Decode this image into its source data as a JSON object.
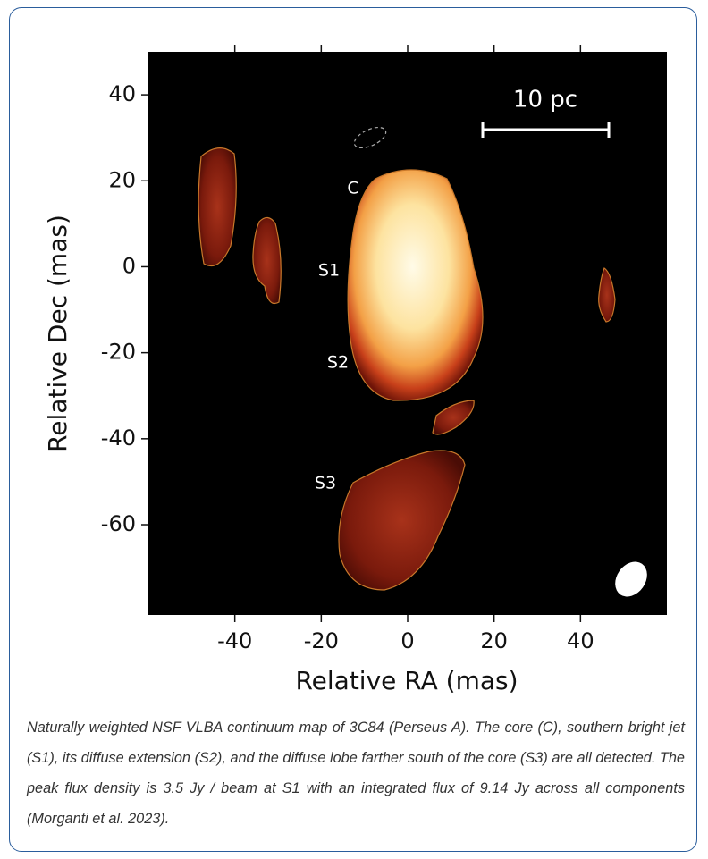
{
  "chart_data": {
    "type": "image",
    "xlabel": "Relative RA (mas)",
    "ylabel": "Relative Dec (mas)",
    "xlim": [
      -60,
      60
    ],
    "ylim": [
      -81,
      50
    ],
    "xticks": [
      -40,
      -20,
      0,
      20,
      40
    ],
    "yticks": [
      40,
      20,
      0,
      -20,
      -40,
      -60
    ],
    "annotations": [
      "C",
      "S1",
      "S2",
      "S3",
      "10 pc"
    ]
  },
  "caption": "Naturally weighted NSF VLBA continuum map of 3C84 (Perseus A).  The core (C), southern bright jet (S1), its diffuse extension (S2), and the diffuse lobe farther south of the core (S3) are all detected.  The peak flux density is 3.5 Jy / beam at S1 with an integrated flux of 9.14 Jy across all components (Morganti et al. 2023)."
}
